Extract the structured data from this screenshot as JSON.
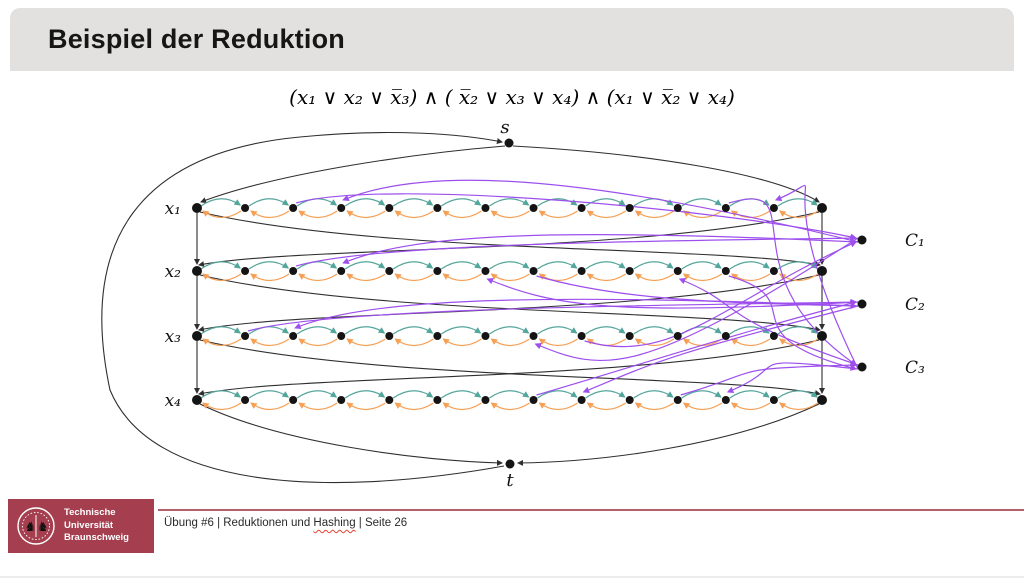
{
  "header": {
    "title": "Beispiel der Reduktion"
  },
  "formula": {
    "display": "(x₁ ∨ x₂ ∨ x̅₃) ∧ ( x̅₂ ∨ x₃ ∨ x₄) ∧ (x₁ ∨ x̅₂ ∨ x₄)",
    "clauses": [
      [
        "x1",
        "x2",
        "¬x3"
      ],
      [
        "¬x2",
        "x3",
        "x4"
      ],
      [
        "x1",
        "¬x2",
        "x4"
      ]
    ]
  },
  "diagram": {
    "source_label": "s",
    "sink_label": "t",
    "row_labels": [
      "x₁",
      "x₂",
      "x₃",
      "x₄"
    ],
    "clause_labels": [
      "C₁",
      "C₂",
      "C₃"
    ],
    "nodes_per_row": 14,
    "colors": {
      "forward_arc": "#53a69b",
      "backward_arc": "#f5a055",
      "clause_edge": "#9d4fed",
      "structure": "#2f2f2f",
      "node": "#141414"
    },
    "clause_connections": [
      {
        "clause": 0,
        "row": 0,
        "nodes": [
          2,
          3
        ],
        "direction": "forward"
      },
      {
        "clause": 0,
        "row": 1,
        "nodes": [
          2,
          3
        ],
        "direction": "forward"
      },
      {
        "clause": 0,
        "row": 2,
        "nodes": [
          7,
          8
        ],
        "direction": "backward"
      },
      {
        "clause": 1,
        "row": 1,
        "nodes": [
          6,
          7
        ],
        "direction": "backward"
      },
      {
        "clause": 1,
        "row": 2,
        "nodes": [
          1,
          2
        ],
        "direction": "forward"
      },
      {
        "clause": 1,
        "row": 3,
        "nodes": [
          7,
          8
        ],
        "direction": "forward"
      },
      {
        "clause": 2,
        "row": 0,
        "nodes": [
          11,
          12
        ],
        "direction": "forward"
      },
      {
        "clause": 2,
        "row": 1,
        "nodes": [
          10,
          11
        ],
        "direction": "backward"
      },
      {
        "clause": 2,
        "row": 3,
        "nodes": [
          10,
          11
        ],
        "direction": "forward"
      }
    ]
  },
  "footer": {
    "university_name": "Technische\nUniversität\nBraunschweig",
    "block_color": "#a53e4e",
    "rule_color": "#b4606b",
    "text_before": "Übung #6 | Reduktionen und ",
    "highlighted_word": "Hashing",
    "text_after": " | Seite 26"
  }
}
